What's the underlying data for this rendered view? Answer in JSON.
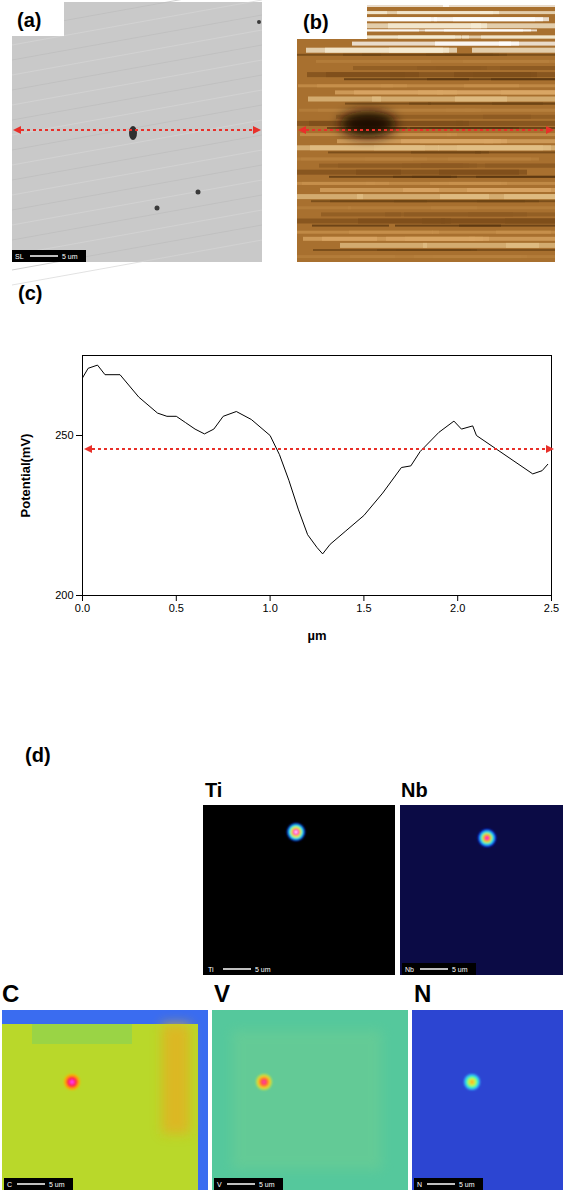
{
  "panels": {
    "a": {
      "label": "(a)",
      "detector": "SL",
      "scale_bar": "5 um"
    },
    "b": {
      "label": "(b)"
    },
    "c": {
      "label": "(c)"
    },
    "d": {
      "label": "(d)"
    }
  },
  "chart_data": {
    "type": "line",
    "x_label": "µm",
    "y_label": "Potential(mV)",
    "x": [
      0,
      0.03,
      0.08,
      0.12,
      0.2,
      0.3,
      0.4,
      0.45,
      0.5,
      0.55,
      0.6,
      0.65,
      0.7,
      0.75,
      0.82,
      0.9,
      1.0,
      1.05,
      1.1,
      1.15,
      1.2,
      1.25,
      1.28,
      1.32,
      1.4,
      1.5,
      1.6,
      1.7,
      1.75,
      1.8,
      1.9,
      1.98,
      2.02,
      2.08,
      2.1,
      2.2,
      2.3,
      2.4,
      2.45,
      2.48
    ],
    "values": [
      268,
      271,
      272,
      269,
      269,
      262,
      257,
      256,
      256,
      254,
      252,
      250.5,
      252,
      256,
      257.5,
      255,
      250,
      244,
      236,
      227,
      219,
      215,
      213,
      216,
      220,
      225,
      232,
      240,
      240.5,
      245,
      251,
      254.5,
      252,
      253,
      250,
      246,
      242,
      238,
      239,
      241
    ],
    "color": "#000000",
    "xlim": [
      0,
      2.5
    ],
    "ylim": [
      200,
      275
    ],
    "xticks": [
      {
        "value": 0,
        "label": "0.0"
      },
      0.5,
      {
        "value": 1,
        "label": "1.0"
      },
      1.5,
      {
        "value": 2,
        "label": "2.0"
      },
      2.5
    ],
    "yticks": [
      200,
      250
    ],
    "grid": false
  },
  "eds_maps": [
    {
      "element": "Ti",
      "scale_bar": "5 um"
    },
    {
      "element": "Nb",
      "scale_bar": "5 um"
    },
    {
      "element": "C",
      "scale_bar": "5 um"
    },
    {
      "element": "V",
      "scale_bar": "5 um"
    },
    {
      "element": "N",
      "scale_bar": "5 um"
    }
  ]
}
